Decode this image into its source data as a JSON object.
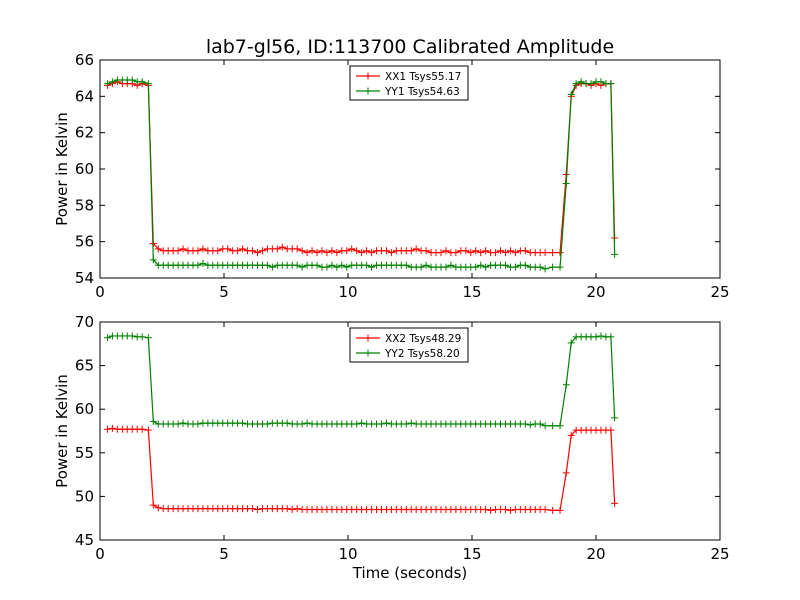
{
  "title": "lab7-gl56, ID:113700 Calibrated Amplitude",
  "xlabel": "Time (seconds)",
  "chart_data": [
    {
      "type": "line",
      "title": "lab7-gl56, ID:113700 Calibrated Amplitude",
      "xlabel": "",
      "ylabel": "Power in Kelvin",
      "xlim": [
        0,
        25
      ],
      "ylim": [
        54,
        66
      ],
      "xticks": [
        0,
        5,
        10,
        15,
        20,
        25
      ],
      "yticks": [
        54,
        56,
        58,
        60,
        62,
        64,
        66
      ],
      "legend_position": "top-center",
      "grid": false,
      "series": [
        {
          "name": "XX1 Tsys55.17",
          "color": "#ff0000",
          "x": [
            0.3,
            0.5,
            0.7,
            0.9,
            1.1,
            1.3,
            1.5,
            1.7,
            1.95,
            2.15,
            2.35,
            2.55,
            2.75,
            2.95,
            3.15,
            3.35,
            3.55,
            3.75,
            3.95,
            4.15,
            4.35,
            4.55,
            4.75,
            4.95,
            5.15,
            5.35,
            5.55,
            5.75,
            5.95,
            6.15,
            6.35,
            6.55,
            6.75,
            6.95,
            7.15,
            7.35,
            7.55,
            7.75,
            7.95,
            8.15,
            8.35,
            8.55,
            8.75,
            8.95,
            9.15,
            9.35,
            9.55,
            9.75,
            9.95,
            10.15,
            10.35,
            10.55,
            10.75,
            10.95,
            11.15,
            11.35,
            11.55,
            11.75,
            11.95,
            12.15,
            12.35,
            12.55,
            12.75,
            12.95,
            13.15,
            13.35,
            13.55,
            13.75,
            13.95,
            14.15,
            14.35,
            14.55,
            14.75,
            14.95,
            15.15,
            15.35,
            15.55,
            15.75,
            15.95,
            16.15,
            16.35,
            16.55,
            16.75,
            16.95,
            17.15,
            17.35,
            17.55,
            17.75,
            17.95,
            18.25,
            18.55,
            18.8,
            19.0,
            19.2,
            19.4,
            19.6,
            19.8,
            20.0,
            20.2,
            20.4,
            20.6,
            20.75
          ],
          "values": [
            64.6,
            64.7,
            64.8,
            64.7,
            64.7,
            64.7,
            64.6,
            64.7,
            64.6,
            55.9,
            55.6,
            55.5,
            55.5,
            55.5,
            55.5,
            55.6,
            55.5,
            55.5,
            55.5,
            55.6,
            55.5,
            55.5,
            55.5,
            55.6,
            55.6,
            55.5,
            55.5,
            55.6,
            55.5,
            55.5,
            55.4,
            55.5,
            55.6,
            55.6,
            55.6,
            55.7,
            55.6,
            55.6,
            55.6,
            55.5,
            55.4,
            55.5,
            55.4,
            55.5,
            55.4,
            55.5,
            55.4,
            55.5,
            55.5,
            55.6,
            55.5,
            55.4,
            55.5,
            55.4,
            55.5,
            55.5,
            55.5,
            55.4,
            55.5,
            55.5,
            55.5,
            55.5,
            55.6,
            55.5,
            55.5,
            55.4,
            55.4,
            55.4,
            55.5,
            55.4,
            55.4,
            55.5,
            55.5,
            55.4,
            55.5,
            55.4,
            55.5,
            55.4,
            55.4,
            55.5,
            55.4,
            55.5,
            55.4,
            55.5,
            55.5,
            55.4,
            55.4,
            55.4,
            55.4,
            55.4,
            55.4,
            59.7,
            64.0,
            64.6,
            64.7,
            64.7,
            64.6,
            64.7,
            64.6,
            64.7,
            64.7,
            56.2
          ]
        },
        {
          "name": "YY1 Tsys54.63",
          "color": "#008000",
          "x": [
            0.3,
            0.5,
            0.7,
            0.9,
            1.1,
            1.3,
            1.5,
            1.7,
            1.95,
            2.15,
            2.35,
            2.55,
            2.75,
            2.95,
            3.15,
            3.35,
            3.55,
            3.75,
            3.95,
            4.15,
            4.35,
            4.55,
            4.75,
            4.95,
            5.15,
            5.35,
            5.55,
            5.75,
            5.95,
            6.15,
            6.35,
            6.55,
            6.75,
            6.95,
            7.15,
            7.35,
            7.55,
            7.75,
            7.95,
            8.15,
            8.35,
            8.55,
            8.75,
            8.95,
            9.15,
            9.35,
            9.55,
            9.75,
            9.95,
            10.15,
            10.35,
            10.55,
            10.75,
            10.95,
            11.15,
            11.35,
            11.55,
            11.75,
            11.95,
            12.15,
            12.35,
            12.55,
            12.75,
            12.95,
            13.15,
            13.35,
            13.55,
            13.75,
            13.95,
            14.15,
            14.35,
            14.55,
            14.75,
            14.95,
            15.15,
            15.35,
            15.55,
            15.75,
            15.95,
            16.15,
            16.35,
            16.55,
            16.75,
            16.95,
            17.15,
            17.35,
            17.55,
            17.75,
            17.95,
            18.25,
            18.55,
            18.8,
            19.0,
            19.2,
            19.4,
            19.6,
            19.8,
            20.0,
            20.2,
            20.4,
            20.6,
            20.75
          ],
          "values": [
            64.7,
            64.8,
            64.9,
            64.9,
            64.9,
            64.9,
            64.8,
            64.8,
            64.7,
            55.0,
            54.7,
            54.7,
            54.7,
            54.7,
            54.7,
            54.7,
            54.7,
            54.7,
            54.7,
            54.8,
            54.7,
            54.7,
            54.7,
            54.7,
            54.7,
            54.7,
            54.7,
            54.7,
            54.7,
            54.7,
            54.7,
            54.7,
            54.7,
            54.6,
            54.7,
            54.7,
            54.7,
            54.7,
            54.7,
            54.6,
            54.7,
            54.7,
            54.7,
            54.6,
            54.6,
            54.7,
            54.6,
            54.7,
            54.6,
            54.7,
            54.7,
            54.7,
            54.7,
            54.6,
            54.7,
            54.7,
            54.7,
            54.7,
            54.7,
            54.7,
            54.7,
            54.6,
            54.6,
            54.6,
            54.7,
            54.6,
            54.6,
            54.6,
            54.6,
            54.7,
            54.6,
            54.6,
            54.6,
            54.6,
            54.6,
            54.7,
            54.6,
            54.7,
            54.7,
            54.7,
            54.7,
            54.6,
            54.6,
            54.7,
            54.7,
            54.6,
            54.6,
            54.6,
            54.5,
            54.6,
            54.6,
            59.2,
            64.1,
            64.7,
            64.8,
            64.7,
            64.7,
            64.8,
            64.8,
            64.7,
            64.7,
            55.3
          ]
        }
      ]
    },
    {
      "type": "line",
      "title": "",
      "xlabel": "Time (seconds)",
      "ylabel": "Power in Kelvin",
      "xlim": [
        0,
        25
      ],
      "ylim": [
        45,
        70
      ],
      "xticks": [
        0,
        5,
        10,
        15,
        20,
        25
      ],
      "yticks": [
        45,
        50,
        55,
        60,
        65,
        70
      ],
      "legend_position": "top-center",
      "grid": false,
      "series": [
        {
          "name": "XX2 Tsys48.29",
          "color": "#ff0000",
          "x": [
            0.3,
            0.5,
            0.7,
            0.9,
            1.1,
            1.3,
            1.5,
            1.7,
            1.95,
            2.15,
            2.35,
            2.55,
            2.75,
            2.95,
            3.15,
            3.35,
            3.55,
            3.75,
            3.95,
            4.15,
            4.35,
            4.55,
            4.75,
            4.95,
            5.15,
            5.35,
            5.55,
            5.75,
            5.95,
            6.15,
            6.35,
            6.55,
            6.75,
            6.95,
            7.15,
            7.35,
            7.55,
            7.75,
            7.95,
            8.15,
            8.35,
            8.55,
            8.75,
            8.95,
            9.15,
            9.35,
            9.55,
            9.75,
            9.95,
            10.15,
            10.35,
            10.55,
            10.75,
            10.95,
            11.15,
            11.35,
            11.55,
            11.75,
            11.95,
            12.15,
            12.35,
            12.55,
            12.75,
            12.95,
            13.15,
            13.35,
            13.55,
            13.75,
            13.95,
            14.15,
            14.35,
            14.55,
            14.75,
            14.95,
            15.15,
            15.35,
            15.55,
            15.75,
            15.95,
            16.15,
            16.35,
            16.55,
            16.75,
            16.95,
            17.15,
            17.35,
            17.55,
            17.75,
            17.95,
            18.25,
            18.55,
            18.8,
            19.0,
            19.2,
            19.4,
            19.6,
            19.8,
            20.0,
            20.2,
            20.4,
            20.6,
            20.75
          ],
          "values": [
            57.7,
            57.8,
            57.7,
            57.7,
            57.7,
            57.7,
            57.7,
            57.7,
            57.6,
            49.0,
            48.7,
            48.6,
            48.6,
            48.6,
            48.6,
            48.6,
            48.6,
            48.6,
            48.6,
            48.6,
            48.6,
            48.6,
            48.6,
            48.6,
            48.6,
            48.6,
            48.6,
            48.6,
            48.6,
            48.6,
            48.5,
            48.6,
            48.6,
            48.6,
            48.6,
            48.6,
            48.6,
            48.5,
            48.6,
            48.5,
            48.5,
            48.5,
            48.5,
            48.5,
            48.5,
            48.5,
            48.5,
            48.5,
            48.5,
            48.5,
            48.5,
            48.5,
            48.5,
            48.5,
            48.5,
            48.5,
            48.5,
            48.5,
            48.5,
            48.5,
            48.5,
            48.5,
            48.5,
            48.5,
            48.5,
            48.5,
            48.5,
            48.5,
            48.5,
            48.5,
            48.5,
            48.5,
            48.5,
            48.5,
            48.5,
            48.5,
            48.5,
            48.4,
            48.5,
            48.5,
            48.5,
            48.4,
            48.5,
            48.5,
            48.5,
            48.5,
            48.5,
            48.5,
            48.5,
            48.4,
            48.4,
            52.7,
            57.0,
            57.6,
            57.6,
            57.6,
            57.6,
            57.6,
            57.6,
            57.6,
            57.6,
            49.2
          ]
        },
        {
          "name": "YY2 Tsys58.20",
          "color": "#008000",
          "x": [
            0.3,
            0.5,
            0.7,
            0.9,
            1.1,
            1.3,
            1.5,
            1.7,
            1.95,
            2.15,
            2.35,
            2.55,
            2.75,
            2.95,
            3.15,
            3.35,
            3.55,
            3.75,
            3.95,
            4.15,
            4.35,
            4.55,
            4.75,
            4.95,
            5.15,
            5.35,
            5.55,
            5.75,
            5.95,
            6.15,
            6.35,
            6.55,
            6.75,
            6.95,
            7.15,
            7.35,
            7.55,
            7.75,
            7.95,
            8.15,
            8.35,
            8.55,
            8.75,
            8.95,
            9.15,
            9.35,
            9.55,
            9.75,
            9.95,
            10.15,
            10.35,
            10.55,
            10.75,
            10.95,
            11.15,
            11.35,
            11.55,
            11.75,
            11.95,
            12.15,
            12.35,
            12.55,
            12.75,
            12.95,
            13.15,
            13.35,
            13.55,
            13.75,
            13.95,
            14.15,
            14.35,
            14.55,
            14.75,
            14.95,
            15.15,
            15.35,
            15.55,
            15.75,
            15.95,
            16.15,
            16.35,
            16.55,
            16.75,
            16.95,
            17.15,
            17.35,
            17.55,
            17.75,
            17.95,
            18.25,
            18.55,
            18.8,
            19.0,
            19.2,
            19.4,
            19.6,
            19.8,
            20.0,
            20.2,
            20.4,
            20.6,
            20.75
          ],
          "values": [
            68.2,
            68.4,
            68.4,
            68.4,
            68.4,
            68.4,
            68.3,
            68.3,
            68.2,
            58.6,
            58.3,
            58.3,
            58.3,
            58.3,
            58.3,
            58.4,
            58.3,
            58.3,
            58.3,
            58.4,
            58.4,
            58.4,
            58.4,
            58.4,
            58.4,
            58.4,
            58.4,
            58.4,
            58.3,
            58.3,
            58.3,
            58.3,
            58.3,
            58.4,
            58.4,
            58.4,
            58.4,
            58.3,
            58.3,
            58.3,
            58.4,
            58.3,
            58.3,
            58.3,
            58.3,
            58.3,
            58.3,
            58.3,
            58.3,
            58.3,
            58.3,
            58.4,
            58.3,
            58.3,
            58.3,
            58.3,
            58.4,
            58.3,
            58.3,
            58.3,
            58.3,
            58.4,
            58.3,
            58.3,
            58.3,
            58.3,
            58.3,
            58.3,
            58.3,
            58.3,
            58.3,
            58.3,
            58.3,
            58.3,
            58.3,
            58.3,
            58.3,
            58.3,
            58.3,
            58.3,
            58.3,
            58.3,
            58.3,
            58.3,
            58.3,
            58.2,
            58.3,
            58.3,
            58.1,
            58.1,
            58.1,
            62.8,
            67.6,
            68.3,
            68.3,
            68.3,
            68.3,
            68.3,
            68.4,
            68.3,
            68.3,
            59.0
          ]
        }
      ]
    }
  ]
}
